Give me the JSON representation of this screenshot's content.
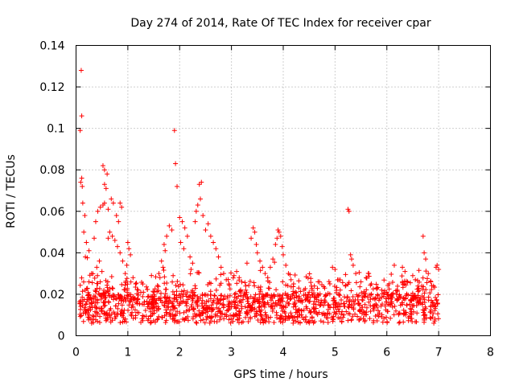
{
  "chart_data": {
    "type": "scatter",
    "title": "Day 274 of 2014, Rate Of TEC Index for receiver cpar",
    "xlabel": "GPS time / hours",
    "ylabel": "ROTI / TECUs",
    "xlim": [
      0,
      8
    ],
    "ylim": [
      0,
      0.14
    ],
    "xticks": [
      0,
      1,
      2,
      3,
      4,
      5,
      6,
      7,
      8
    ],
    "yticks": [
      0,
      0.02,
      0.04,
      0.06,
      0.08,
      0.1,
      0.12,
      0.14
    ],
    "xtick_labels": [
      "0",
      "1",
      "2",
      "3",
      "4",
      "5",
      "6",
      "7",
      "8"
    ],
    "ytick_labels": [
      "0",
      "0.02",
      "0.04",
      "0.06",
      "0.08",
      "0.1",
      "0.12",
      "0.14"
    ],
    "grid": true,
    "marker": "+",
    "color": "#ff0000",
    "series": [
      {
        "name": "ROTI",
        "points": [
          [
            0.1,
            0.128
          ],
          [
            0.11,
            0.106
          ],
          [
            0.08,
            0.099
          ],
          [
            0.11,
            0.076
          ],
          [
            0.09,
            0.074
          ],
          [
            0.12,
            0.072
          ],
          [
            0.13,
            0.064
          ],
          [
            0.17,
            0.058
          ],
          [
            0.15,
            0.05
          ],
          [
            0.2,
            0.045
          ],
          [
            0.25,
            0.041
          ],
          [
            0.18,
            0.038
          ],
          [
            0.35,
            0.047
          ],
          [
            0.38,
            0.055
          ],
          [
            0.42,
            0.06
          ],
          [
            0.47,
            0.062
          ],
          [
            0.52,
            0.063
          ],
          [
            0.55,
            0.064
          ],
          [
            0.52,
            0.082
          ],
          [
            0.55,
            0.08
          ],
          [
            0.6,
            0.078
          ],
          [
            0.55,
            0.073
          ],
          [
            0.58,
            0.071
          ],
          [
            0.62,
            0.061
          ],
          [
            0.68,
            0.066
          ],
          [
            0.72,
            0.064
          ],
          [
            0.78,
            0.058
          ],
          [
            0.82,
            0.055
          ],
          [
            0.85,
            0.064
          ],
          [
            0.88,
            0.062
          ],
          [
            0.65,
            0.05
          ],
          [
            0.7,
            0.048
          ],
          [
            0.75,
            0.046
          ],
          [
            0.8,
            0.043
          ],
          [
            0.85,
            0.04
          ],
          [
            0.62,
            0.047
          ],
          [
            0.4,
            0.033
          ],
          [
            0.45,
            0.036
          ],
          [
            0.3,
            0.03
          ],
          [
            0.25,
            0.026
          ],
          [
            0.5,
            0.031
          ],
          [
            0.9,
            0.036
          ],
          [
            0.95,
            0.03
          ],
          [
            1.0,
            0.045
          ],
          [
            1.02,
            0.042
          ],
          [
            1.05,
            0.039
          ],
          [
            0.98,
            0.034
          ],
          [
            1.1,
            0.028
          ],
          [
            1.15,
            0.025
          ],
          [
            1.2,
            0.022
          ],
          [
            1.3,
            0.021
          ],
          [
            1.4,
            0.019
          ],
          [
            1.5,
            0.018
          ],
          [
            1.9,
            0.099
          ],
          [
            1.92,
            0.083
          ],
          [
            1.95,
            0.072
          ],
          [
            1.8,
            0.053
          ],
          [
            1.85,
            0.051
          ],
          [
            1.75,
            0.048
          ],
          [
            1.7,
            0.044
          ],
          [
            1.72,
            0.041
          ],
          [
            1.65,
            0.036
          ],
          [
            1.68,
            0.033
          ],
          [
            1.6,
            0.03
          ],
          [
            1.62,
            0.028
          ],
          [
            2.0,
            0.057
          ],
          [
            2.05,
            0.055
          ],
          [
            2.1,
            0.052
          ],
          [
            2.15,
            0.048
          ],
          [
            2.02,
            0.045
          ],
          [
            2.08,
            0.042
          ],
          [
            2.2,
            0.038
          ],
          [
            2.25,
            0.035
          ],
          [
            2.22,
            0.032
          ],
          [
            2.3,
            0.055
          ],
          [
            2.35,
            0.063
          ],
          [
            2.4,
            0.066
          ],
          [
            2.38,
            0.073
          ],
          [
            2.42,
            0.074
          ],
          [
            2.45,
            0.058
          ],
          [
            2.32,
            0.06
          ],
          [
            2.5,
            0.051
          ],
          [
            2.55,
            0.054
          ],
          [
            2.6,
            0.048
          ],
          [
            2.65,
            0.045
          ],
          [
            2.7,
            0.042
          ],
          [
            2.75,
            0.038
          ],
          [
            2.8,
            0.033
          ],
          [
            2.85,
            0.03
          ],
          [
            2.9,
            0.027
          ],
          [
            2.95,
            0.025
          ],
          [
            3.05,
            0.029
          ],
          [
            3.1,
            0.031
          ],
          [
            3.15,
            0.028
          ],
          [
            3.2,
            0.026
          ],
          [
            3.3,
            0.035
          ],
          [
            3.38,
            0.047
          ],
          [
            3.42,
            0.052
          ],
          [
            3.45,
            0.05
          ],
          [
            3.48,
            0.044
          ],
          [
            3.5,
            0.04
          ],
          [
            3.55,
            0.036
          ],
          [
            3.6,
            0.033
          ],
          [
            3.65,
            0.03
          ],
          [
            3.7,
            0.028
          ],
          [
            3.75,
            0.033
          ],
          [
            3.8,
            0.037
          ],
          [
            3.85,
            0.044
          ],
          [
            3.88,
            0.047
          ],
          [
            3.9,
            0.051
          ],
          [
            3.92,
            0.05
          ],
          [
            3.95,
            0.048
          ],
          [
            3.98,
            0.043
          ],
          [
            4.0,
            0.039
          ],
          [
            4.05,
            0.034
          ],
          [
            4.1,
            0.03
          ],
          [
            4.15,
            0.027
          ],
          [
            4.2,
            0.025
          ],
          [
            4.3,
            0.023
          ],
          [
            4.4,
            0.022
          ],
          [
            4.5,
            0.021
          ],
          [
            4.6,
            0.024
          ],
          [
            4.7,
            0.026
          ],
          [
            4.8,
            0.023
          ],
          [
            4.9,
            0.025
          ],
          [
            4.95,
            0.033
          ],
          [
            5.0,
            0.032
          ],
          [
            5.05,
            0.027
          ],
          [
            5.1,
            0.022
          ],
          [
            5.2,
            0.024
          ],
          [
            5.25,
            0.061
          ],
          [
            5.27,
            0.06
          ],
          [
            5.3,
            0.039
          ],
          [
            5.32,
            0.037
          ],
          [
            5.35,
            0.034
          ],
          [
            5.4,
            0.03
          ],
          [
            5.5,
            0.026
          ],
          [
            5.6,
            0.028
          ],
          [
            5.65,
            0.03
          ],
          [
            5.7,
            0.025
          ],
          [
            5.8,
            0.023
          ],
          [
            5.9,
            0.022
          ],
          [
            6.0,
            0.021
          ],
          [
            6.1,
            0.02
          ],
          [
            6.2,
            0.022
          ],
          [
            6.3,
            0.033
          ],
          [
            6.35,
            0.031
          ],
          [
            6.4,
            0.026
          ],
          [
            6.5,
            0.029
          ],
          [
            6.55,
            0.027
          ],
          [
            6.6,
            0.024
          ],
          [
            6.7,
            0.048
          ],
          [
            6.72,
            0.04
          ],
          [
            6.75,
            0.037
          ],
          [
            6.8,
            0.03
          ],
          [
            6.85,
            0.026
          ],
          [
            6.9,
            0.024
          ],
          [
            6.95,
            0.033
          ],
          [
            6.97,
            0.034
          ],
          [
            7.0,
            0.032
          ]
        ]
      }
    ]
  }
}
